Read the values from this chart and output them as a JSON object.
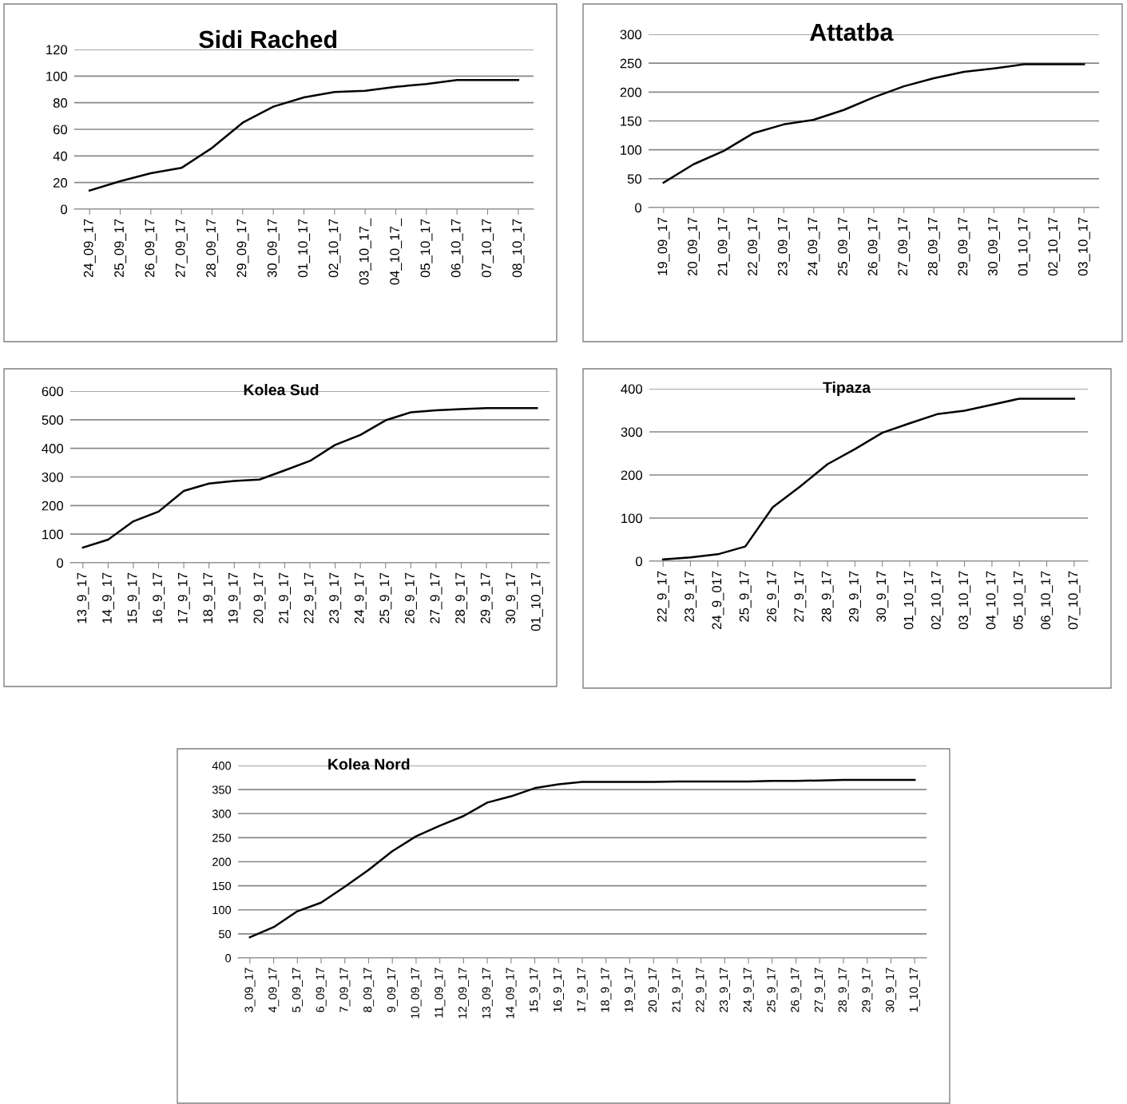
{
  "chart_data": [
    {
      "type": "line",
      "title": "Sidi Rached",
      "categories": [
        "24_09_17",
        "25_09_17",
        "26_09_17",
        "27_09_17",
        "28_09_17",
        "29_09_17",
        "30_09_17",
        "01_10_17",
        "02_10_17",
        "03_10_17_",
        "04_10_17_",
        "05_10_17",
        "06_10_17",
        "07_10_17",
        "08_10_17"
      ],
      "series": [
        {
          "color": "#000000",
          "values": [
            14,
            21,
            27,
            31,
            46,
            65,
            77,
            84,
            88,
            89,
            92,
            94,
            97,
            97,
            97
          ]
        }
      ],
      "ylim": [
        0,
        120
      ],
      "yticks": [
        0,
        20,
        40,
        60,
        80,
        100,
        120
      ],
      "grid": "y",
      "legend": false
    },
    {
      "type": "line",
      "title": "Attatba",
      "categories": [
        "19_09_17",
        "20_09_17",
        "21_09_17",
        "22_09_17",
        "23_09_17",
        "24_09_17",
        "25_09_17",
        "26_09_17",
        "27_09_17",
        "28_09_17",
        "29_09_17",
        "30_09_17",
        "01_10_17",
        "02_10_17",
        "03_10_17"
      ],
      "series": [
        {
          "color": "#000000",
          "values": [
            43,
            75,
            98,
            129,
            144,
            152,
            169,
            191,
            210,
            224,
            235,
            241,
            248,
            248,
            248
          ]
        }
      ],
      "ylim": [
        0,
        300
      ],
      "yticks": [
        0,
        50,
        100,
        150,
        200,
        250,
        300
      ],
      "grid": "y",
      "legend": false
    },
    {
      "type": "line",
      "title": "Kolea Sud",
      "categories": [
        "13_9_17",
        "14_9_17",
        "15_9_17",
        "16_9_17",
        "17_9_17",
        "18_9_17",
        "19_9_17",
        "20_9_17",
        "21_9_17",
        "22_9_17",
        "23_9_17",
        "24_9_17",
        "25_9_17",
        "26_9_17",
        "27_9_17",
        "28_9_17",
        "29_9_17",
        "30_9_17",
        "01_10_17"
      ],
      "series": [
        {
          "color": "#000000",
          "values": [
            53,
            81,
            145,
            179,
            251,
            277,
            286,
            291,
            323,
            356,
            412,
            447,
            498,
            526,
            533,
            537,
            541,
            541,
            541
          ]
        }
      ],
      "ylim": [
        0,
        600
      ],
      "yticks": [
        0,
        100,
        200,
        300,
        400,
        500,
        600
      ],
      "grid": "y",
      "legend": false
    },
    {
      "type": "line",
      "title": "Tipaza",
      "categories": [
        "22_9_17",
        "23_9_17",
        "24_9_017",
        "25_9_17",
        "26_9_17",
        "27_9_17",
        "28_9_17",
        "29_9_17",
        "30_9_17",
        "01_10_17",
        "02_10_17",
        "03_10_17",
        "04_10_17",
        "05_10_17",
        "06_10_17",
        "07_10_17"
      ],
      "series": [
        {
          "color": "#000000",
          "values": [
            4,
            9,
            16,
            34,
            125,
            173,
            225,
            260,
            298,
            320,
            341,
            349,
            363,
            377,
            377,
            377
          ]
        }
      ],
      "ylim": [
        0,
        400
      ],
      "yticks": [
        0,
        100,
        200,
        300,
        400
      ],
      "grid": "y",
      "legend": false
    },
    {
      "type": "line",
      "title": "Kolea Nord",
      "categories": [
        "3_09_17",
        "4_09_17",
        "5_09_17",
        "6_09_17",
        "7_09_17",
        "8_09_17",
        "9_09_17",
        "10_09_17",
        "11_09_17",
        "12_09_17",
        "13_09_17",
        "14_09_17",
        "15_9_17",
        "16_9_17",
        "17_9_17",
        "18_9_17",
        "19_9_17",
        "20_9_17",
        "21_9_17",
        "22_9_17",
        "23_9_17",
        "24_9_17",
        "25_9_17",
        "26_9_17",
        "27_9_17",
        "28_9_17",
        "29_9_17",
        "30_9_17",
        "1_10_17"
      ],
      "series": [
        {
          "color": "#000000",
          "values": [
            43,
            64,
            97,
            115,
            148,
            183,
            222,
            253,
            275,
            295,
            323,
            336,
            353,
            361,
            366,
            366,
            366,
            366,
            367,
            367,
            367,
            367,
            368,
            368,
            369,
            370,
            370,
            370,
            370
          ]
        }
      ],
      "ylim": [
        0,
        400
      ],
      "yticks": [
        0,
        50,
        100,
        150,
        200,
        250,
        300,
        350,
        400
      ],
      "grid": "y",
      "legend": false
    }
  ]
}
